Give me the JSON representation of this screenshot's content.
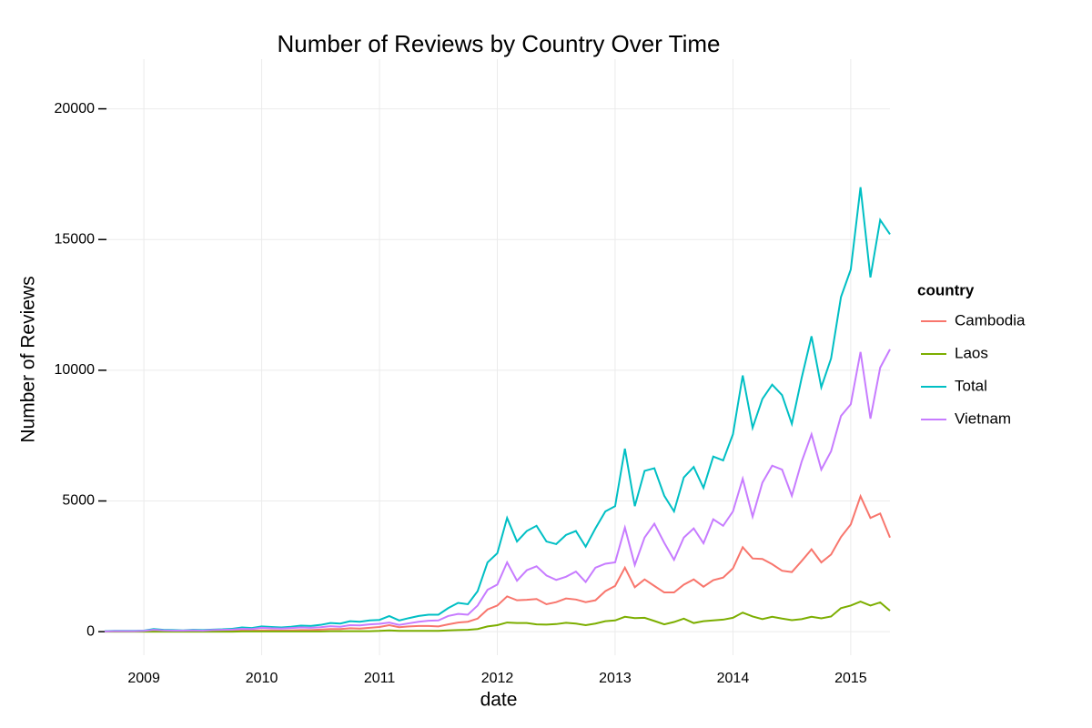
{
  "chart_data": {
    "type": "line",
    "title": "Number of Reviews by Country Over Time",
    "x_label": "date",
    "y_label": "Number of Reviews",
    "legend_title": "country",
    "x": [
      2008.667,
      2008.75,
      2008.833,
      2008.917,
      2009,
      2009.083,
      2009.167,
      2009.25,
      2009.333,
      2009.417,
      2009.5,
      2009.583,
      2009.667,
      2009.75,
      2009.833,
      2009.917,
      2010,
      2010.083,
      2010.167,
      2010.25,
      2010.333,
      2010.417,
      2010.5,
      2010.583,
      2010.667,
      2010.75,
      2010.833,
      2010.917,
      2011,
      2011.083,
      2011.167,
      2011.25,
      2011.333,
      2011.417,
      2011.5,
      2011.583,
      2011.667,
      2011.75,
      2011.833,
      2011.917,
      2012,
      2012.083,
      2012.167,
      2012.25,
      2012.333,
      2012.417,
      2012.5,
      2012.583,
      2012.667,
      2012.75,
      2012.833,
      2012.917,
      2013,
      2013.083,
      2013.167,
      2013.25,
      2013.333,
      2013.417,
      2013.5,
      2013.583,
      2013.667,
      2013.75,
      2013.833,
      2013.917,
      2014,
      2014.083,
      2014.167,
      2014.25,
      2014.333,
      2014.417,
      2014.5,
      2014.583,
      2014.667,
      2014.75,
      2014.833,
      2014.917,
      2015,
      2015.083,
      2015.167,
      2015.25,
      2015.333
    ],
    "xlim": [
      2008.667,
      2015.333
    ],
    "xticks": [
      2009,
      2010,
      2011,
      2012,
      2013,
      2014,
      2015
    ],
    "ylim": [
      -900,
      21900
    ],
    "yticks": [
      0,
      5000,
      10000,
      15000,
      20000
    ],
    "grid": true,
    "series": [
      {
        "name": "Cambodia",
        "color": "#F8766D",
        "values": [
          10,
          10,
          10,
          10,
          10,
          30,
          20,
          20,
          20,
          20,
          20,
          20,
          20,
          30,
          40,
          40,
          50,
          50,
          40,
          50,
          60,
          60,
          80,
          100,
          100,
          130,
          120,
          150,
          180,
          250,
          170,
          200,
          220,
          220,
          200,
          280,
          350,
          380,
          500,
          850,
          1000,
          1350,
          1200,
          1220,
          1250,
          1050,
          1130,
          1270,
          1230,
          1130,
          1200,
          1550,
          1750,
          2450,
          1700,
          2000,
          1750,
          1500,
          1500,
          1800,
          2000,
          1720,
          1970,
          2070,
          2420,
          3230,
          2800,
          2780,
          2580,
          2330,
          2280,
          2700,
          3150,
          2650,
          2950,
          3620,
          4100,
          5180,
          4350,
          4520,
          3600
        ]
      },
      {
        "name": "Laos",
        "color": "#7CAE00",
        "values": [
          0,
          0,
          0,
          0,
          0,
          0,
          0,
          0,
          0,
          0,
          0,
          0,
          0,
          0,
          10,
          10,
          10,
          10,
          10,
          10,
          10,
          10,
          10,
          20,
          20,
          20,
          20,
          20,
          30,
          50,
          30,
          30,
          30,
          30,
          30,
          50,
          60,
          70,
          100,
          200,
          250,
          350,
          330,
          330,
          280,
          270,
          290,
          340,
          310,
          250,
          310,
          400,
          430,
          570,
          520,
          530,
          410,
          280,
          370,
          500,
          330,
          400,
          430,
          460,
          530,
          730,
          580,
          480,
          570,
          500,
          440,
          480,
          570,
          510,
          580,
          900,
          1000,
          1150,
          1000,
          1120,
          800
        ]
      },
      {
        "name": "Total",
        "color": "#00BFC4",
        "values": [
          20,
          30,
          30,
          30,
          40,
          100,
          70,
          60,
          50,
          70,
          60,
          80,
          90,
          110,
          160,
          140,
          200,
          180,
          160,
          190,
          230,
          220,
          260,
          330,
          310,
          400,
          380,
          430,
          450,
          600,
          430,
          520,
          600,
          650,
          650,
          900,
          1100,
          1050,
          1550,
          2650,
          3000,
          4350,
          3450,
          3850,
          4050,
          3450,
          3350,
          3700,
          3850,
          3250,
          3950,
          4600,
          4800,
          7000,
          4800,
          6150,
          6250,
          5200,
          4600,
          5900,
          6300,
          5500,
          6700,
          6550,
          7550,
          9800,
          7800,
          8900,
          9450,
          9050,
          7950,
          9700,
          11300,
          9350,
          10450,
          12800,
          13850,
          17000,
          13550,
          15750,
          15200
        ]
      },
      {
        "name": "Vietnam",
        "color": "#C77CFF",
        "values": [
          10,
          20,
          20,
          20,
          30,
          70,
          50,
          40,
          40,
          50,
          40,
          60,
          70,
          80,
          110,
          100,
          150,
          130,
          120,
          140,
          160,
          150,
          170,
          210,
          190,
          250,
          240,
          280,
          300,
          350,
          260,
          320,
          380,
          420,
          430,
          600,
          680,
          650,
          1000,
          1600,
          1800,
          2650,
          1950,
          2350,
          2500,
          2150,
          1980,
          2100,
          2300,
          1900,
          2450,
          2600,
          2650,
          3980,
          2550,
          3600,
          4130,
          3400,
          2750,
          3600,
          3950,
          3380,
          4300,
          4050,
          4600,
          5850,
          4400,
          5700,
          6350,
          6200,
          5200,
          6500,
          7550,
          6200,
          6900,
          8250,
          8700,
          10700,
          8150,
          10100,
          10800
        ]
      }
    ]
  }
}
